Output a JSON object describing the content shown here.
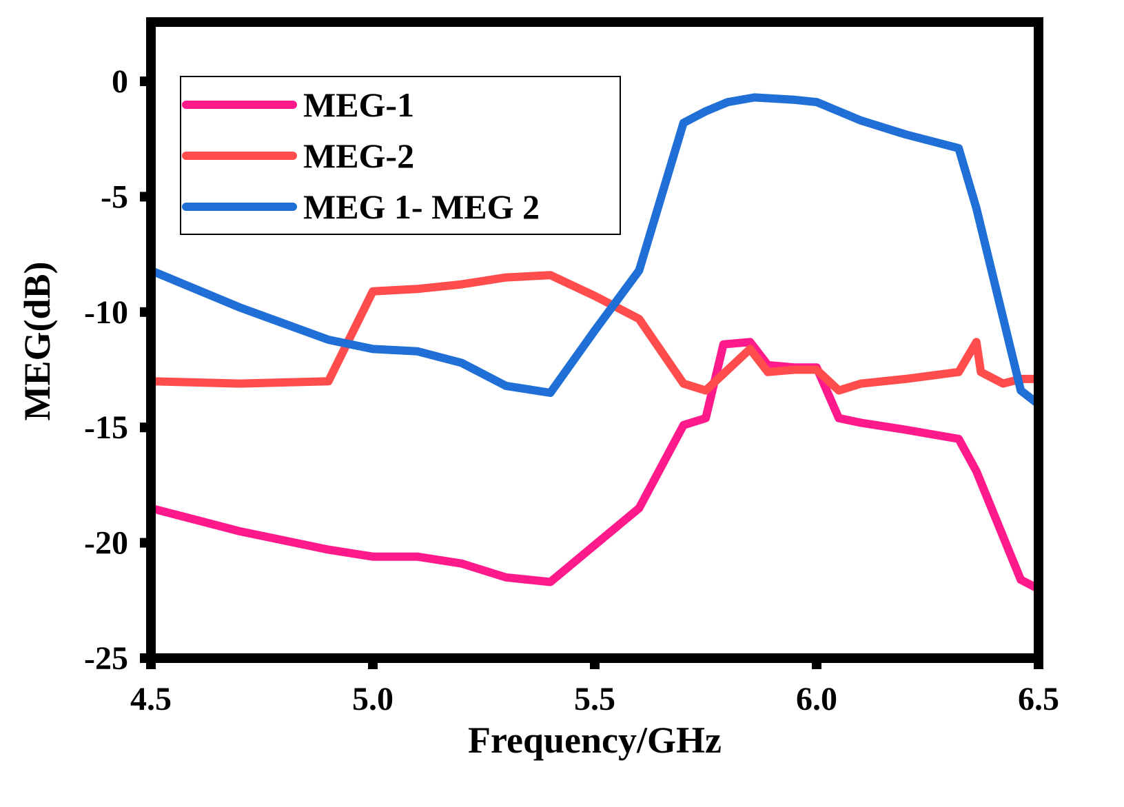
{
  "chart_data": {
    "type": "line",
    "title": "",
    "xlabel": "Frequency/GHz",
    "ylabel": "MEG(dB)",
    "xlim": [
      4.5,
      6.5
    ],
    "ylim": [
      -25,
      2.5
    ],
    "xticks": [
      4.5,
      5.0,
      5.5,
      6.0,
      6.5
    ],
    "xtick_labels": [
      "4.5",
      "5.0",
      "5.5",
      "6.0",
      "6.5"
    ],
    "yticks": [
      0,
      -5,
      -10,
      -15,
      -20,
      -25
    ],
    "ytick_labels": [
      "0",
      "-5",
      "-10",
      "-15",
      "-20",
      "-25"
    ],
    "grid": false,
    "legend_position": "top-left",
    "series": [
      {
        "name": "MEG-1",
        "color": "#ff1a8c",
        "points": [
          [
            4.5,
            -18.5
          ],
          [
            4.7,
            -19.5
          ],
          [
            4.9,
            -20.3
          ],
          [
            5.0,
            -20.6
          ],
          [
            5.1,
            -20.6
          ],
          [
            5.2,
            -20.9
          ],
          [
            5.3,
            -21.5
          ],
          [
            5.4,
            -21.7
          ],
          [
            5.5,
            -20.1
          ],
          [
            5.6,
            -18.5
          ],
          [
            5.7,
            -14.9
          ],
          [
            5.75,
            -14.6
          ],
          [
            5.79,
            -11.4
          ],
          [
            5.85,
            -11.3
          ],
          [
            5.89,
            -12.3
          ],
          [
            5.95,
            -12.4
          ],
          [
            6.0,
            -12.4
          ],
          [
            6.05,
            -14.6
          ],
          [
            6.1,
            -14.8
          ],
          [
            6.2,
            -15.1
          ],
          [
            6.32,
            -15.5
          ],
          [
            6.36,
            -16.9
          ],
          [
            6.46,
            -21.6
          ],
          [
            6.5,
            -22.0
          ]
        ]
      },
      {
        "name": "MEG-2",
        "color": "#ff4d4d",
        "points": [
          [
            4.5,
            -13.0
          ],
          [
            4.7,
            -13.1
          ],
          [
            4.9,
            -13.0
          ],
          [
            5.0,
            -9.1
          ],
          [
            5.1,
            -9.0
          ],
          [
            5.2,
            -8.8
          ],
          [
            5.3,
            -8.5
          ],
          [
            5.4,
            -8.4
          ],
          [
            5.5,
            -9.3
          ],
          [
            5.6,
            -10.3
          ],
          [
            5.7,
            -13.1
          ],
          [
            5.75,
            -13.4
          ],
          [
            5.85,
            -11.6
          ],
          [
            5.89,
            -12.6
          ],
          [
            5.95,
            -12.5
          ],
          [
            6.0,
            -12.5
          ],
          [
            6.05,
            -13.4
          ],
          [
            6.1,
            -13.1
          ],
          [
            6.2,
            -12.9
          ],
          [
            6.32,
            -12.6
          ],
          [
            6.36,
            -11.3
          ],
          [
            6.37,
            -12.6
          ],
          [
            6.42,
            -13.1
          ],
          [
            6.46,
            -12.9
          ],
          [
            6.5,
            -12.9
          ]
        ]
      },
      {
        "name": "MEG 1- MEG 2",
        "color": "#1f6fd6",
        "points": [
          [
            4.5,
            -8.2
          ],
          [
            4.7,
            -9.8
          ],
          [
            4.9,
            -11.2
          ],
          [
            5.0,
            -11.6
          ],
          [
            5.1,
            -11.7
          ],
          [
            5.2,
            -12.2
          ],
          [
            5.3,
            -13.2
          ],
          [
            5.4,
            -13.5
          ],
          [
            5.5,
            -10.8
          ],
          [
            5.6,
            -8.2
          ],
          [
            5.65,
            -5.0
          ],
          [
            5.7,
            -1.8
          ],
          [
            5.75,
            -1.3
          ],
          [
            5.8,
            -0.9
          ],
          [
            5.86,
            -0.7
          ],
          [
            5.95,
            -0.8
          ],
          [
            6.0,
            -0.9
          ],
          [
            6.05,
            -1.3
          ],
          [
            6.1,
            -1.7
          ],
          [
            6.2,
            -2.3
          ],
          [
            6.32,
            -2.9
          ],
          [
            6.36,
            -5.5
          ],
          [
            6.46,
            -13.4
          ],
          [
            6.5,
            -14.0
          ]
        ]
      }
    ]
  }
}
